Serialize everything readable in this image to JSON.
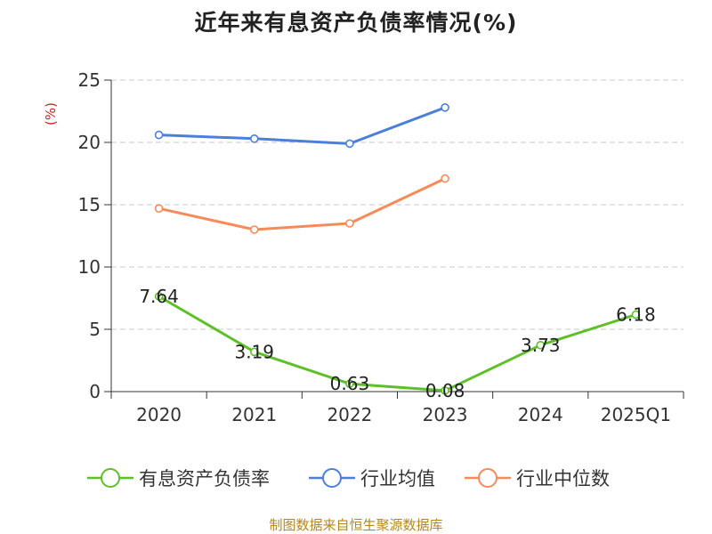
{
  "title": "近年来有息资产负债率情况(%)",
  "source": "制图数据来自恒生聚源数据库",
  "chart_data": {
    "type": "line",
    "title": "近年来有息资产负债率情况(%)",
    "ylabel": "(%)",
    "xlabel": "",
    "ylim": [
      0,
      25
    ],
    "yticks": [
      0,
      5,
      10,
      15,
      20,
      25
    ],
    "grid": true,
    "legend_position": "bottom",
    "categories": [
      "2020",
      "2021",
      "2022",
      "2023",
      "2024",
      "2025Q1"
    ],
    "series": [
      {
        "name": "有息资产负债率",
        "color": "#5ec028",
        "values": [
          7.64,
          3.19,
          0.63,
          0.08,
          3.73,
          6.18
        ],
        "labels": [
          "7.64",
          "3.19",
          "0.63",
          "0.08",
          "3.73",
          "6.18"
        ]
      },
      {
        "name": "行业均值",
        "color": "#4a7fdc",
        "values": [
          20.6,
          20.3,
          19.9,
          22.8,
          null,
          null
        ]
      },
      {
        "name": "行业中位数",
        "color": "#f68b59",
        "values": [
          14.7,
          13.0,
          13.5,
          17.1,
          null,
          null
        ]
      }
    ]
  }
}
